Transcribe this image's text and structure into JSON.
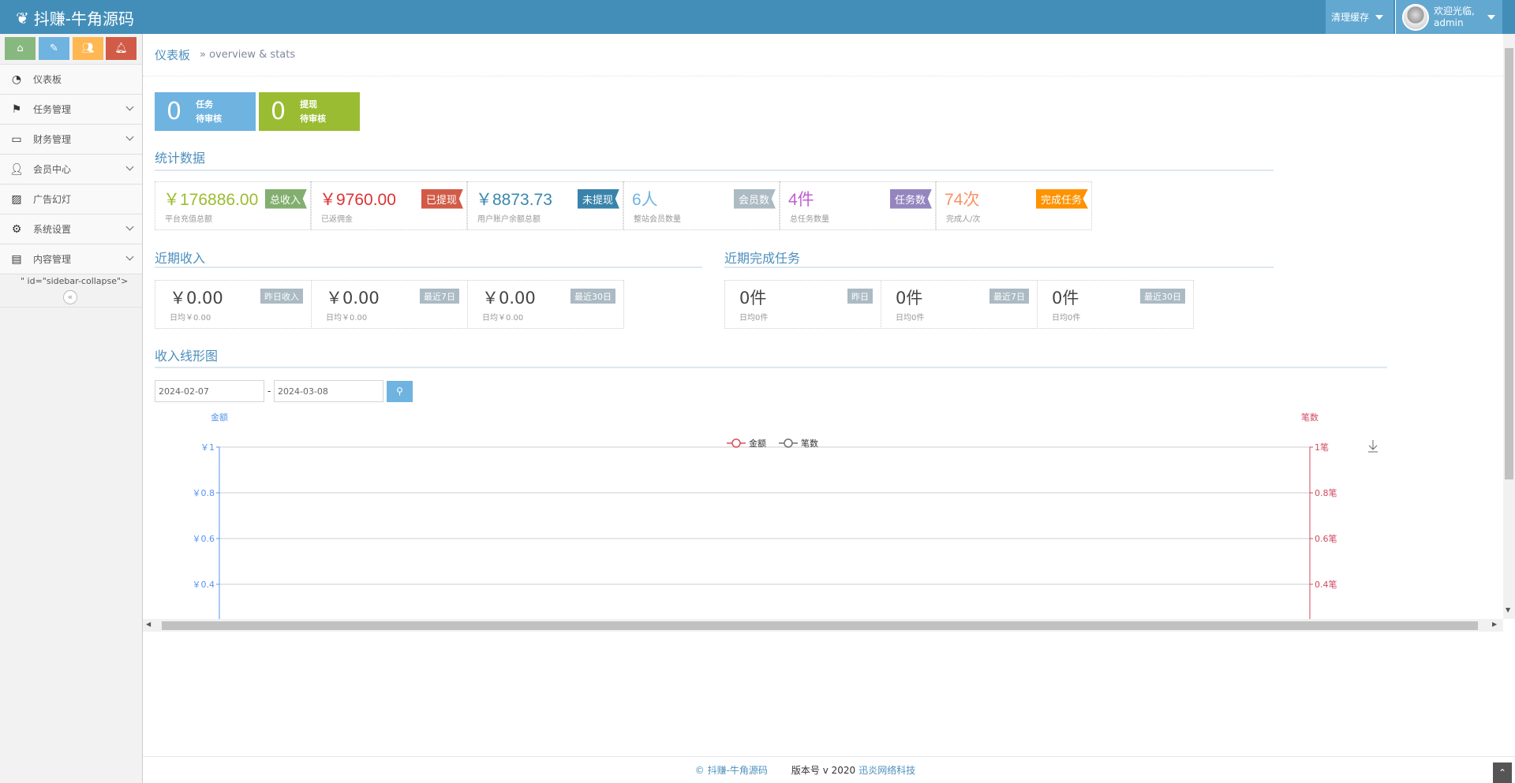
{
  "header": {
    "brand": "抖赚-牛角源码",
    "brand_icon": "leaf-icon",
    "clear_cache": "清理缓存",
    "welcome": "欢迎光临,",
    "username": "admin"
  },
  "sidebar": {
    "shortcuts": [
      {
        "icon": "home-icon",
        "color": "#87b87f"
      },
      {
        "icon": "pencil-icon",
        "color": "#6fb3e0"
      },
      {
        "icon": "users-icon",
        "color": "#ffb752"
      },
      {
        "icon": "bell-icon",
        "color": "#d15b47"
      }
    ],
    "items": [
      {
        "label": "仪表板",
        "icon": "dashboard-icon"
      },
      {
        "label": "任务管理",
        "icon": "flag-icon"
      },
      {
        "label": "财务管理",
        "icon": "hdd-icon"
      },
      {
        "label": "会员中心",
        "icon": "user-icon"
      },
      {
        "label": "广告幻灯",
        "icon": "picture-icon"
      },
      {
        "label": "系统设置",
        "icon": "cog-icon"
      },
      {
        "label": "内容管理",
        "icon": "book-icon"
      }
    ],
    "stray_text": "\" id=\"sidebar-collapse\">"
  },
  "breadcrumb": {
    "title": "仪表板",
    "sub": "» overview & stats"
  },
  "infoboxes": [
    {
      "num": "0",
      "line1": "任务",
      "line2": "待审核",
      "color": "#6fb3e0"
    },
    {
      "num": "0",
      "line1": "提现",
      "line2": "待审核",
      "color": "#9abc32"
    }
  ],
  "stats": {
    "title": "统计数据",
    "items": [
      {
        "value": "￥176886.00",
        "label": "平台充值总额",
        "ribbon": "总收入",
        "color": "#9abc32",
        "ribbon_color": "#82af6f"
      },
      {
        "value": "￥9760.00",
        "label": "已返佣金",
        "ribbon": "已提现",
        "color": "#dd3333",
        "ribbon_color": "#d15b47"
      },
      {
        "value": "￥8873.73",
        "label": "用户账户余额总额",
        "ribbon": "未提现",
        "color": "#3a87ad",
        "ribbon_color": "#3983ab"
      },
      {
        "value": "6人",
        "label": "整站会员数量",
        "ribbon": "会员数",
        "color": "#6fb3e0",
        "ribbon_color": "#abbac3"
      },
      {
        "value": "4件",
        "label": "总任务数量",
        "ribbon": "任务数",
        "color": "#c15fd1",
        "ribbon_color": "#9585bf"
      },
      {
        "value": "74次",
        "label": "完成人/次",
        "ribbon": "完成任务",
        "color": "#f79263",
        "ribbon_color": "#fe9200"
      }
    ]
  },
  "income": {
    "title": "近期收入",
    "items": [
      {
        "value": "￥0.00",
        "tag": "昨日收入",
        "sub": "日均￥0.00"
      },
      {
        "value": "￥0.00",
        "tag": "最近7日",
        "sub": "日均￥0.00"
      },
      {
        "value": "￥0.00",
        "tag": "最近30日",
        "sub": "日均￥0.00"
      }
    ]
  },
  "tasks": {
    "title": "近期完成任务",
    "items": [
      {
        "value": "0件",
        "tag": "昨日",
        "sub": "日均0件"
      },
      {
        "value": "0件",
        "tag": "最近7日",
        "sub": "日均0件"
      },
      {
        "value": "0件",
        "tag": "最近30日",
        "sub": "日均0件"
      }
    ]
  },
  "chart_section": {
    "title": "收入线形图",
    "start_date": "2024-02-07",
    "separator": "-",
    "end_date": "2024-03-08"
  },
  "chart_data": {
    "type": "line",
    "title": "",
    "legend_position": "top-center",
    "series": [
      {
        "name": "金额",
        "values": [],
        "color": "#d94e5d",
        "axis": "left"
      },
      {
        "name": "笔数",
        "values": [],
        "color": "#6e7074",
        "axis": "right"
      }
    ],
    "y_left": {
      "label": "金额",
      "color": "#5793f3",
      "ticks": [
        "￥1",
        "￥0.8",
        "￥0.6",
        "￥0.4"
      ],
      "tick_values": [
        1,
        0.8,
        0.6,
        0.4
      ],
      "ylim": [
        0,
        1
      ]
    },
    "y_right": {
      "label": "笔数",
      "color": "#d14a61",
      "ticks": [
        "1笔",
        "0.8笔",
        "0.6笔",
        "0.4笔"
      ],
      "tick_values": [
        1,
        0.8,
        0.6,
        0.4
      ],
      "ylim": [
        0,
        1
      ]
    },
    "grid": true
  },
  "footer": {
    "copyright": "© 抖赚-牛角源码",
    "version": "版本号 v 2020",
    "company": "迅炎网络科技"
  }
}
